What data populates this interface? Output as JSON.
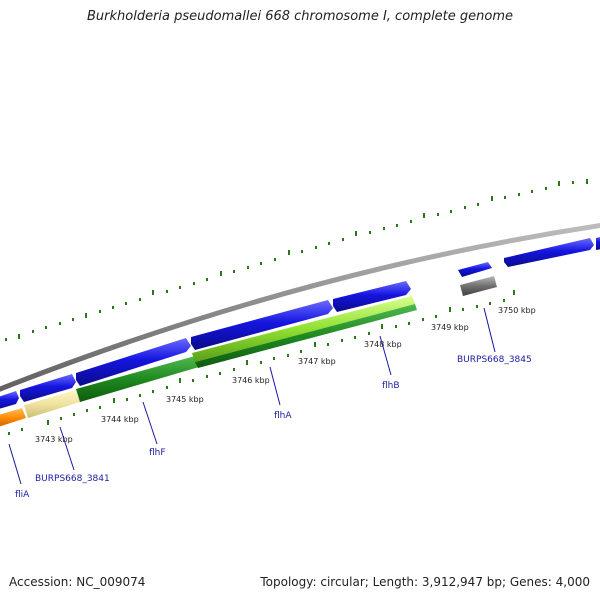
{
  "title": "Burkholderia pseudomallei 668 chromosome I, complete genome",
  "footer": {
    "accession": "Accession: NC_009074",
    "summary": "Topology: circular; Length: 3,912,947 bp; Genes: 4,000"
  },
  "colors": {
    "backbone": "#8a8a8a",
    "cds": "#1515e0",
    "tick": "#2a7a1a",
    "fliA": "#ff8a00",
    "BURPS668_3841": "#efe3a0",
    "flhF": "#1f8a1f",
    "flhA": "#90e030",
    "flhB": "#1f8a1f",
    "BURPS668_3845": "#707070",
    "label": "#1a1aa0"
  },
  "kbp_labels": [
    "3743 kbp",
    "3744 kbp",
    "3745 kbp",
    "3746 kbp",
    "3747 kbp",
    "3748 kbp",
    "3749 kbp",
    "3750 kbp"
  ],
  "gene_labels": [
    "fliA",
    "BURPS668_3841",
    "flhF",
    "flhA",
    "flhB",
    "BURPS668_3845"
  ]
}
